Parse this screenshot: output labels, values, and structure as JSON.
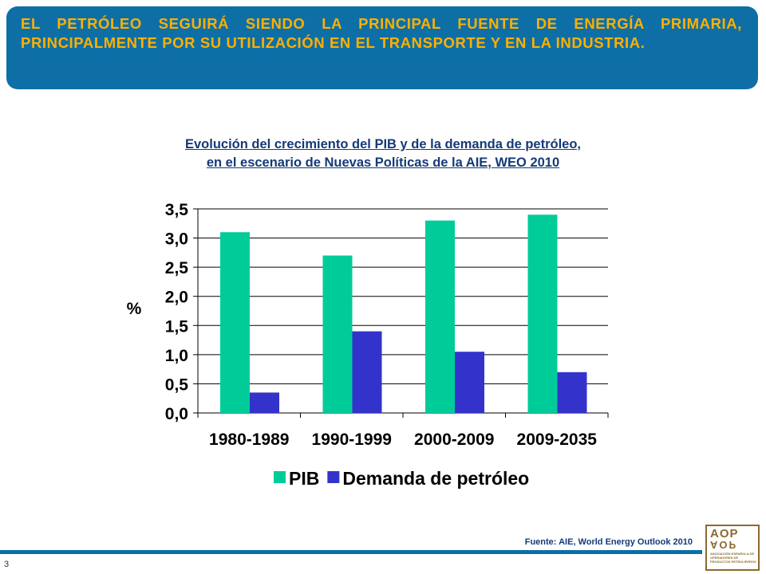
{
  "banner": {
    "text": "EL PETRÓLEO SEGUIRÁ SIENDO LA PRINCIPAL FUENTE DE ENERGÍA PRIMARIA, PRINCIPALMENTE POR SU UTILIZACIÓN EN EL TRANSPORTE Y EN LA INDUSTRIA."
  },
  "chart_data": {
    "type": "bar",
    "title": "Evolución del crecimiento del PIB y de la demanda de petróleo,",
    "subtitle": "en el escenario de Nuevas Políticas de la AIE, WEO 2010",
    "ylabel": "%",
    "xlabel": "",
    "categories": [
      "1980-1989",
      "1990-1999",
      "2000-2009",
      "2009-2035"
    ],
    "series": [
      {
        "name": "PIB",
        "values": [
          3.1,
          2.7,
          3.3,
          3.4
        ],
        "color": "#00cc99"
      },
      {
        "name": "Demanda de petróleo",
        "values": [
          0.35,
          1.4,
          1.05,
          0.7
        ],
        "color": "#3333cc"
      }
    ],
    "ylim": [
      0,
      3.5
    ],
    "yticks": [
      "0,0",
      "0,5",
      "1,0",
      "1,5",
      "2,0",
      "2,5",
      "3,0",
      "3,5"
    ],
    "grid": true,
    "legend": "bottom"
  },
  "footer": {
    "source": "Fuente: AIE, World Energy Outlook 2010",
    "page": "3"
  },
  "logo": {
    "mark": "AOP",
    "text": "ASOCIACIÓN ESPAÑOLA DE OPERADORES DE PRODUCTOS PETROLÍFEROS"
  }
}
